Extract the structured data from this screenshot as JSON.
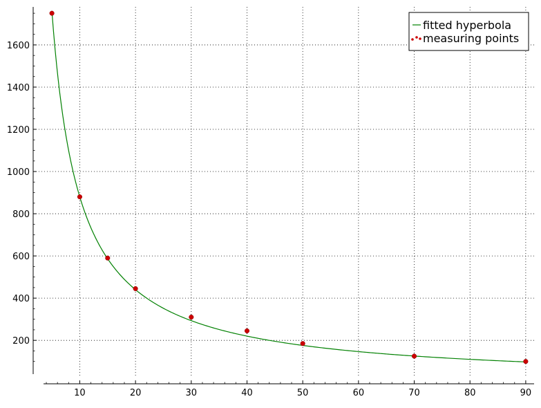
{
  "chart_data": {
    "type": "scatter",
    "title": "",
    "xlabel": "",
    "ylabel": "",
    "xlim": [
      3.5,
      91.5
    ],
    "ylim": [
      40,
      1780
    ],
    "x_ticks": [
      10,
      20,
      30,
      40,
      50,
      60,
      70,
      80,
      90
    ],
    "y_ticks": [
      200,
      400,
      600,
      800,
      1000,
      1200,
      1400,
      1600
    ],
    "grid": true,
    "legend_position": "top-right",
    "series": [
      {
        "name": "fitted hyperbola",
        "kind": "line",
        "color": "#008000",
        "equation": "y = 8800 / x",
        "x_range": [
          5,
          90
        ]
      },
      {
        "name": "measuring points",
        "kind": "scatter",
        "color": "#cc0000",
        "points": [
          {
            "x": 5,
            "y": 1750
          },
          {
            "x": 10,
            "y": 880
          },
          {
            "x": 15,
            "y": 590
          },
          {
            "x": 20,
            "y": 445
          },
          {
            "x": 30,
            "y": 310
          },
          {
            "x": 40,
            "y": 245
          },
          {
            "x": 50,
            "y": 185
          },
          {
            "x": 70,
            "y": 125
          },
          {
            "x": 90,
            "y": 100
          }
        ]
      }
    ]
  }
}
